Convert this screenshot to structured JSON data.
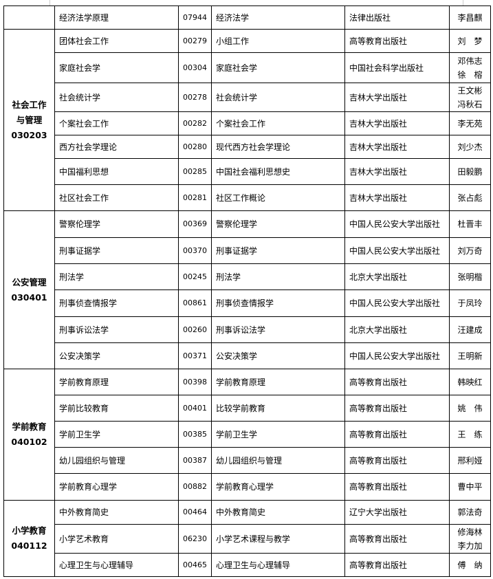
{
  "groups": [
    {
      "name": "",
      "code": "",
      "rows": [
        {
          "course": "经济法学原理",
          "code": "07944",
          "textbook": "经济法学",
          "publisher": "法律出版社",
          "author": "李昌麒"
        }
      ]
    },
    {
      "name": "社会工作\n与管理",
      "code": "030203",
      "rows": [
        {
          "course": "团体社会工作",
          "code": "00279",
          "textbook": "小组工作",
          "publisher": "高等教育出版社",
          "author": "刘　梦"
        },
        {
          "course": "家庭社会学",
          "code": "00304",
          "textbook": "家庭社会学",
          "publisher": "中国社会科学出版社",
          "author": "邓伟志\n徐　榕"
        },
        {
          "course": "社会统计学",
          "code": "00278",
          "textbook": "社会统计学",
          "publisher": "吉林大学出版社",
          "author": "王文彬\n冯秋石"
        },
        {
          "course": "个案社会工作",
          "code": "00282",
          "textbook": "个案社会工作",
          "publisher": "吉林大学出版社",
          "author": "李无苑"
        },
        {
          "course": "西方社会学理论",
          "code": "00280",
          "textbook": "现代西方社会学理论",
          "publisher": "吉林大学出版社",
          "author": "刘少杰"
        },
        {
          "course": "中国福利思想",
          "code": "00285",
          "textbook": "中国社会福利思想史",
          "publisher": "吉林大学出版社",
          "author": "田毅鹏"
        },
        {
          "course": "社区社会工作",
          "code": "00281",
          "textbook": "社区工作概论",
          "publisher": "吉林大学出版社",
          "author": "张占彪"
        }
      ]
    },
    {
      "name": "公安管理",
      "code": "030401",
      "rows": [
        {
          "course": "警察伦理学",
          "code": "00369",
          "textbook": "警察伦理学",
          "publisher": "中国人民公安大学出版社",
          "author": "杜晋丰"
        },
        {
          "course": "刑事证据学",
          "code": "00370",
          "textbook": "刑事证据学",
          "publisher": "中国人民公安大学出版社",
          "author": "刘万奇"
        },
        {
          "course": "刑法学",
          "code": "00245",
          "textbook": "刑法学",
          "publisher": "北京大学出版社",
          "author": "张明楷"
        },
        {
          "course": "刑事侦查情报学",
          "code": "00861",
          "textbook": "刑事侦查情报学",
          "publisher": "中国人民公安大学出版社",
          "author": "于凤玲"
        },
        {
          "course": "刑事诉讼法学",
          "code": "00260",
          "textbook": "刑事诉讼法学",
          "publisher": "北京大学出版社",
          "author": "汪建成"
        },
        {
          "course": "公安决策学",
          "code": "00371",
          "textbook": "公安决策学",
          "publisher": "中国人民公安大学出版社",
          "author": "王明新"
        }
      ]
    },
    {
      "name": "学前教育",
      "code": "040102",
      "rows": [
        {
          "course": "学前教育原理",
          "code": "00398",
          "textbook": "学前教育原理",
          "publisher": "高等教育出版社",
          "author": "韩映红"
        },
        {
          "course": "学前比较教育",
          "code": "00401",
          "textbook": "比较学前教育",
          "publisher": "高等教育出版社",
          "author": "姚　伟"
        },
        {
          "course": "学前卫生学",
          "code": "00385",
          "textbook": "学前卫生学",
          "publisher": "高等教育出版社",
          "author": "王　练"
        },
        {
          "course": "幼儿园组织与管理",
          "code": "00387",
          "textbook": "幼儿园组织与管理",
          "publisher": "高等教育出版社",
          "author": "邢利娅"
        },
        {
          "course": "学前教育心理学",
          "code": "00882",
          "textbook": "学前教育心理学",
          "publisher": "高等教育出版社",
          "author": "曹中平"
        }
      ]
    },
    {
      "name": "小学教育",
      "code": "040112",
      "rows": [
        {
          "course": "中外教育简史",
          "code": "00464",
          "textbook": "中外教育简史",
          "publisher": "辽宁大学出版社",
          "author": "郭法奇"
        },
        {
          "course": "小学艺术教育",
          "code": "06230",
          "textbook": "小学艺术课程与教学",
          "publisher": "高等教育出版社",
          "author": "修海林\n李力加"
        },
        {
          "course": "心理卫生与心理辅导",
          "code": "00465",
          "textbook": "心理卫生与心理辅导",
          "publisher": "高等教育出版社",
          "author": "傅　纳"
        }
      ]
    }
  ]
}
